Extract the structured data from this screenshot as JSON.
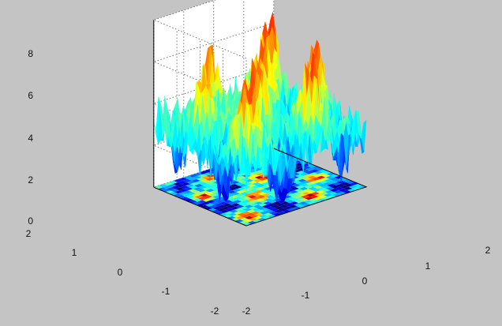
{
  "chart_data": {
    "type": "surface",
    "title": "",
    "xlabel": "",
    "ylabel": "",
    "zlabel": "",
    "x_ticks": [
      "-2",
      "-1",
      "0",
      "1",
      "2"
    ],
    "y_ticks": [
      "-2",
      "-1",
      "0",
      "1",
      "2"
    ],
    "z_ticks": [
      "0",
      "2",
      "4",
      "6",
      "8"
    ],
    "xlim": [
      -2,
      2
    ],
    "ylim": [
      -2,
      2
    ],
    "zlim": [
      0,
      8
    ],
    "grid": true,
    "colormap": "jet",
    "contour_projection_on_floor": true,
    "surface_z_range": [
      0,
      7.5
    ]
  },
  "colors": {
    "figure_background": "#c4c4c4",
    "axes_background": "#ffffff"
  }
}
